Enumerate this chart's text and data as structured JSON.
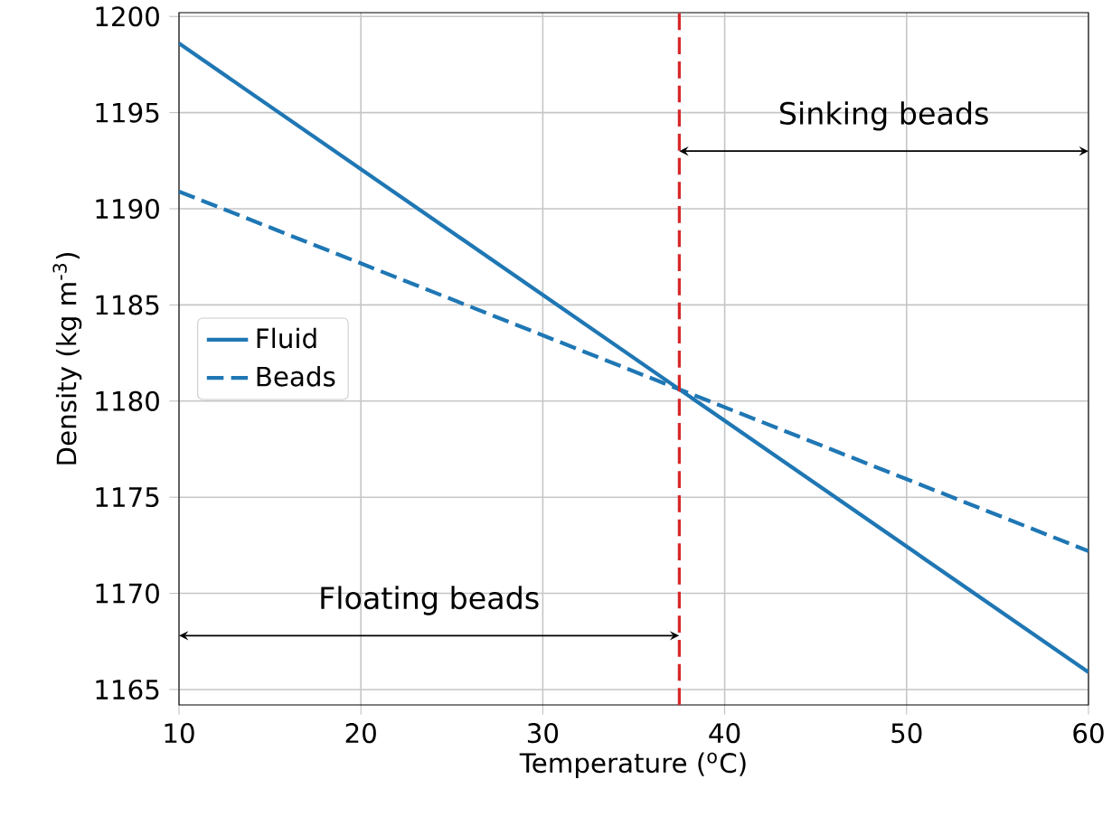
{
  "chart_data": {
    "type": "line",
    "xlabel": "Temperature ($^{o}$C)",
    "ylabel": "Density (kg m$^{-3}$)",
    "x": [
      10,
      60
    ],
    "series": [
      {
        "name": "Fluid",
        "color": "#1f77b4",
        "values": [
          1198.6,
          1165.9
        ],
        "line_style": "solid"
      },
      {
        "name": "Beads",
        "color": "#1f77b4",
        "values": [
          1190.9,
          1172.2
        ],
        "line_style": "dashed"
      }
    ],
    "xlim": [
      10,
      60
    ],
    "ylim": [
      1164.2,
      1200.2
    ],
    "xticks": [
      10,
      20,
      30,
      40,
      50,
      60
    ],
    "yticks": [
      1165,
      1170,
      1175,
      1180,
      1185,
      1190,
      1195,
      1200
    ],
    "ref_lines": [
      {
        "axis": "x",
        "value": 37.5,
        "color": "#d62728",
        "line_style": "dashed"
      }
    ],
    "annotations": [
      "Sinking beads",
      "Floating beads"
    ],
    "grid": true,
    "legend": "left",
    "marker": "none"
  }
}
